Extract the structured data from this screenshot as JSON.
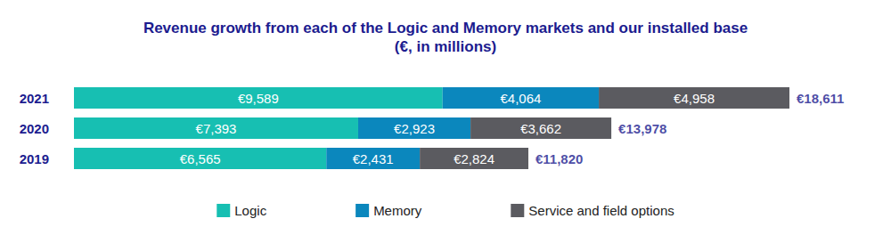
{
  "chart_data": {
    "type": "bar",
    "title": "Revenue growth from each of the Logic and Memory markets and our installed base",
    "subtitle": "(€, in millions)",
    "orientation": "horizontal",
    "stacked": true,
    "data_labels": true,
    "tick_labels": "y",
    "grid": false,
    "legend": "bottom",
    "categories": [
      "2021",
      "2020",
      "2019"
    ],
    "xlim": [
      0,
      18611
    ],
    "series": [
      {
        "name": "Logic",
        "color": "#17bfb2",
        "values": [
          9589,
          7393,
          6565
        ],
        "value_labels": [
          "€9,589",
          "€7,393",
          "€6,565"
        ]
      },
      {
        "name": "Memory",
        "color": "#0b87bd",
        "values": [
          4064,
          2923,
          2431
        ],
        "value_labels": [
          "€4,064",
          "€2,923",
          "€2,431"
        ]
      },
      {
        "name": "Service and field options",
        "color": "#5b5b60",
        "values": [
          4958,
          3662,
          2824
        ],
        "value_labels": [
          "€4,958",
          "€3,662",
          "€2,824"
        ]
      }
    ],
    "totals": [
      18611,
      13978,
      11820
    ],
    "total_labels": [
      "€18,611",
      "€13,978",
      "€11,820"
    ]
  }
}
